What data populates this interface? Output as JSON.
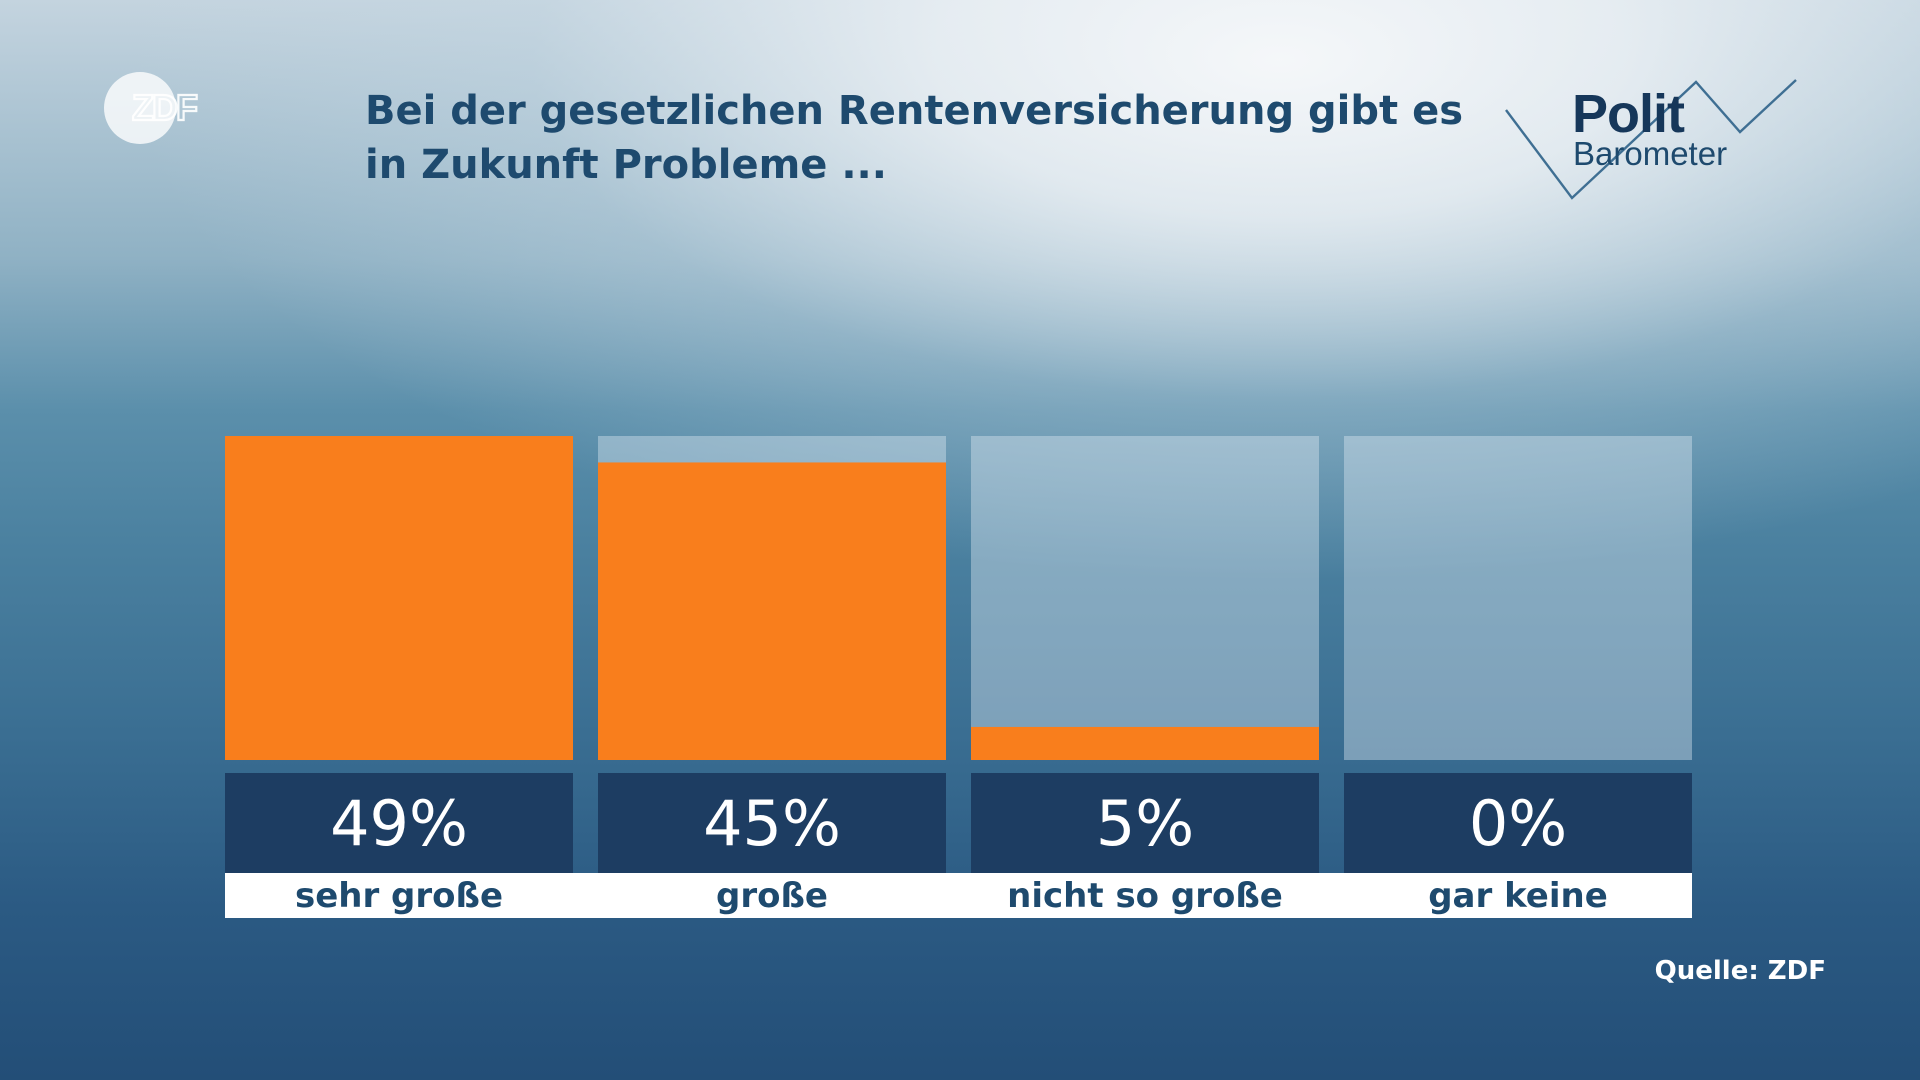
{
  "logos": {
    "broadcaster": "ZDF",
    "program_top": "Polit",
    "program_bottom": "Barometer"
  },
  "chart_data": {
    "type": "bar",
    "title": "Bei der gesetzlichen Rentenversicherung gibt es in Zukunft Probleme ...",
    "title_lines": [
      "Bei der gesetzlichen Rentenversicherung gibt es",
      "in Zukunft Probleme ..."
    ],
    "categories": [
      "sehr große",
      "große",
      "nicht so große",
      "gar keine"
    ],
    "values": [
      49,
      45,
      5,
      0
    ],
    "value_labels": [
      "49%",
      "45%",
      "5%",
      "0%"
    ],
    "unit": "%",
    "ylim": [
      0,
      49
    ],
    "grid": false,
    "legend": false,
    "colors": {
      "bar": "#f97e1c",
      "track": "rgba(220,232,240,0.42)",
      "value_box": "#1d3d62",
      "value_text": "#ffffff",
      "category_box": "#ffffff",
      "category_text": "#1e4a6e"
    }
  },
  "footer": {
    "source": "Quelle: ZDF"
  }
}
